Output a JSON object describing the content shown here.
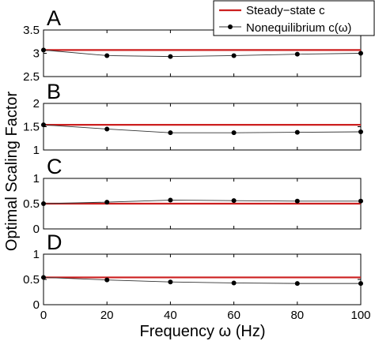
{
  "figure": {
    "ylabel": "Optimal Scaling Factor",
    "xlabel": "Frequency ω (Hz)"
  },
  "legend": {
    "steady_label": "Steady−state c",
    "noneq_label": "Nonequilibrium c(ω)",
    "placement": "top-right"
  },
  "colors": {
    "steady": "#cc1f1f",
    "noneq": "#333333",
    "marker": "#000000"
  },
  "chart_data": [
    {
      "type": "line",
      "panel": "A",
      "x": [
        0,
        20,
        40,
        60,
        80,
        100
      ],
      "series": [
        {
          "name": "Steady−state c",
          "values": [
            3.07,
            3.07,
            3.07,
            3.07,
            3.07,
            3.07
          ]
        },
        {
          "name": "Nonequilibrium c(ω)",
          "values": [
            3.07,
            2.95,
            2.93,
            2.95,
            2.98,
            3.0
          ]
        }
      ],
      "xlim": [
        0,
        100
      ],
      "ylim": [
        2.5,
        3.5
      ],
      "yticks": [
        2.5,
        3,
        3.5
      ],
      "ytick_labels": [
        "2.5",
        "3",
        "3.5"
      ],
      "xticks": [
        0,
        20,
        40,
        60,
        80,
        100
      ],
      "xtick_labels": []
    },
    {
      "type": "line",
      "panel": "B",
      "x": [
        0,
        20,
        40,
        60,
        80,
        100
      ],
      "series": [
        {
          "name": "Steady−state c",
          "values": [
            1.54,
            1.54,
            1.54,
            1.54,
            1.54,
            1.54
          ]
        },
        {
          "name": "Nonequilibrium c(ω)",
          "values": [
            1.54,
            1.45,
            1.37,
            1.37,
            1.38,
            1.39
          ]
        }
      ],
      "xlim": [
        0,
        100
      ],
      "ylim": [
        1,
        2
      ],
      "yticks": [
        1,
        1.5,
        2
      ],
      "ytick_labels": [
        "1",
        "1.5",
        "2"
      ],
      "xticks": [
        0,
        20,
        40,
        60,
        80,
        100
      ],
      "xtick_labels": []
    },
    {
      "type": "line",
      "panel": "C",
      "x": [
        0,
        20,
        40,
        60,
        80,
        100
      ],
      "series": [
        {
          "name": "Steady−state c",
          "values": [
            0.5,
            0.5,
            0.5,
            0.5,
            0.5,
            0.5
          ]
        },
        {
          "name": "Nonequilibrium c(ω)",
          "values": [
            0.5,
            0.53,
            0.57,
            0.56,
            0.55,
            0.55
          ]
        }
      ],
      "xlim": [
        0,
        100
      ],
      "ylim": [
        0,
        1
      ],
      "yticks": [
        0,
        0.5,
        1
      ],
      "ytick_labels": [
        "0",
        "0.5",
        "1"
      ],
      "xticks": [
        0,
        20,
        40,
        60,
        80,
        100
      ],
      "xtick_labels": []
    },
    {
      "type": "line",
      "panel": "D",
      "x": [
        0,
        20,
        40,
        60,
        80,
        100
      ],
      "series": [
        {
          "name": "Steady−state c",
          "values": [
            0.54,
            0.54,
            0.54,
            0.54,
            0.54,
            0.54
          ]
        },
        {
          "name": "Nonequilibrium c(ω)",
          "values": [
            0.54,
            0.49,
            0.45,
            0.43,
            0.42,
            0.42
          ]
        }
      ],
      "xlim": [
        0,
        100
      ],
      "ylim": [
        0,
        1
      ],
      "yticks": [
        0,
        0.5,
        1
      ],
      "ytick_labels": [
        "0",
        "0.5",
        "1"
      ],
      "xticks": [
        0,
        20,
        40,
        60,
        80,
        100
      ],
      "xtick_labels": [
        "0",
        "20",
        "40",
        "60",
        "80",
        "100"
      ]
    }
  ]
}
